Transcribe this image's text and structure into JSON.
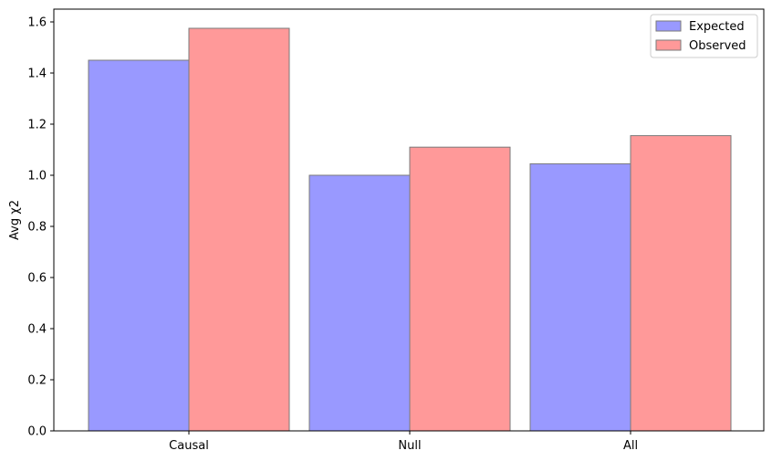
{
  "chart_data": {
    "type": "bar",
    "categories": [
      "Causal",
      "Null",
      "All"
    ],
    "series": [
      {
        "name": "Expected",
        "values": [
          1.45,
          1.0,
          1.045
        ],
        "color": "#9999ff"
      },
      {
        "name": "Observed",
        "values": [
          1.575,
          1.11,
          1.155
        ],
        "color": "#ff9999"
      }
    ],
    "bar_edge_color": "#7a7a7a",
    "title": "",
    "xlabel": "",
    "ylabel": "Avg χ2",
    "ylim": [
      0,
      1.65
    ],
    "yticks": [
      0.0,
      0.2,
      0.4,
      0.6,
      0.8,
      1.0,
      1.2,
      1.4,
      1.6
    ],
    "ytick_labels": [
      "0.0",
      "0.2",
      "0.4",
      "0.6",
      "0.8",
      "1.0",
      "1.2",
      "1.4",
      "1.6"
    ],
    "grid": false,
    "legend_position": "top-right"
  }
}
